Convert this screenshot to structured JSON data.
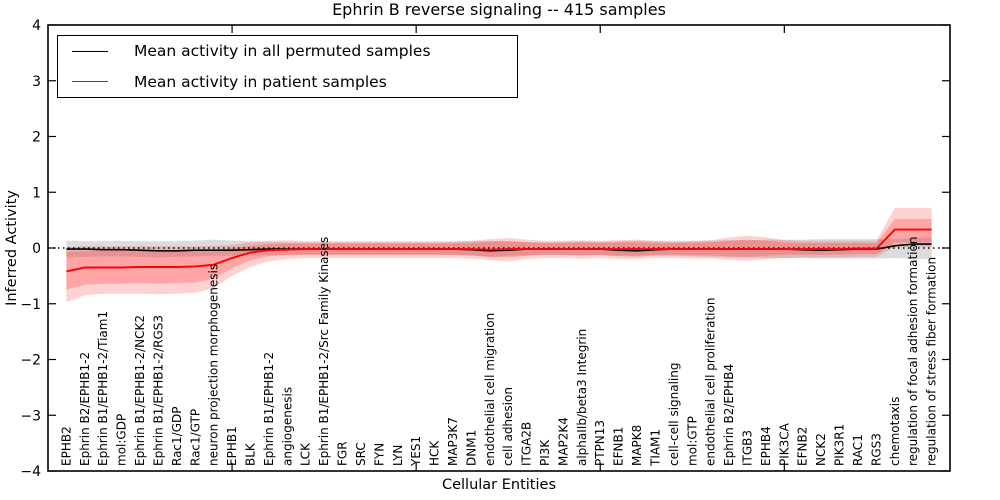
{
  "chart_data": {
    "type": "line",
    "title": "Ephrin B reverse signaling -- 415 samples",
    "xlabel": "Cellular Entities",
    "ylabel": "Inferred Activity",
    "ylim": [
      -4,
      4
    ],
    "yticks": [
      4,
      3,
      2,
      1,
      0,
      -1,
      -2,
      -3,
      -4
    ],
    "xticks": [
      10,
      20,
      30,
      40
    ],
    "grid": false,
    "legend_position": "upper left",
    "legend": [
      {
        "label": "Mean activity in all permuted samples",
        "color": "#000000"
      },
      {
        "label": "Mean activity in patient samples",
        "color": "#ff0000"
      }
    ],
    "zero_line": {
      "style": "dotted",
      "color": "#000000",
      "y": 0
    },
    "categories": [
      "EPHB2",
      "Ephrin B2/EPHB1-2",
      "Ephrin B1/EPHB1-2/Tiam1",
      "mol:GDP",
      "Ephrin B1/EPHB1-2/NCK2",
      "Ephrin B1/EPHB1-2/RGS3",
      "Rac1/GDP",
      "Rac1/GTP",
      "neuron projection morphogenesis",
      "EPHB1",
      "BLK",
      "Ephrin B1/EPHB1-2",
      "angiogenesis",
      "LCK",
      "Ephrin B1/EPHB1-2/Src Family Kinases",
      "FGR",
      "SRC",
      "FYN",
      "LYN",
      "YES1",
      "HCK",
      "MAP3K7",
      "DNM1",
      "endothelial cell migration",
      "cell adhesion",
      "ITGA2B",
      "PI3K",
      "MAP2K4",
      "alphaIIb/beta3 Integrin",
      "PTPN13",
      "EFNB1",
      "MAPK8",
      "TIAM1",
      "cell-cell signaling",
      "mol:GTP",
      "endothelial cell proliferation",
      "Ephrin B2/EPHB4",
      "ITGB3",
      "EPHB4",
      "PIK3CA",
      "EFNB2",
      "NCK2",
      "PIK3R1",
      "RAC1",
      "RGS3",
      "chemotaxis",
      "regulation of focal adhesion formation",
      "regulation of stress fiber formation"
    ],
    "series": [
      {
        "name": "Mean activity in all permuted samples",
        "color": "#000000",
        "values": [
          -0.02,
          -0.02,
          -0.03,
          -0.03,
          -0.04,
          -0.05,
          -0.05,
          -0.04,
          -0.04,
          -0.04,
          -0.03,
          -0.02,
          -0.02,
          -0.02,
          -0.02,
          -0.02,
          -0.02,
          -0.02,
          -0.02,
          -0.02,
          -0.02,
          -0.02,
          -0.03,
          -0.05,
          -0.04,
          -0.02,
          -0.02,
          -0.02,
          -0.02,
          -0.02,
          -0.04,
          -0.05,
          -0.03,
          -0.02,
          -0.02,
          -0.02,
          -0.02,
          -0.02,
          -0.02,
          -0.02,
          -0.03,
          -0.04,
          -0.03,
          -0.02,
          -0.02,
          0.04,
          0.07,
          0.07
        ]
      },
      {
        "name": "Mean activity in patient samples",
        "color": "#ff0000",
        "values": [
          -0.42,
          -0.35,
          -0.35,
          -0.35,
          -0.34,
          -0.34,
          -0.34,
          -0.33,
          -0.3,
          -0.18,
          -0.08,
          -0.04,
          -0.03,
          -0.02,
          -0.02,
          -0.02,
          -0.02,
          -0.02,
          -0.02,
          -0.02,
          -0.02,
          -0.02,
          -0.02,
          -0.03,
          -0.02,
          -0.02,
          -0.02,
          -0.02,
          -0.02,
          -0.02,
          -0.02,
          -0.02,
          -0.02,
          -0.02,
          -0.02,
          -0.02,
          -0.02,
          -0.02,
          -0.02,
          -0.02,
          -0.02,
          -0.02,
          -0.02,
          -0.01,
          -0.01,
          0.33,
          0.33,
          0.33
        ]
      }
    ],
    "bands": [
      {
        "name": "permuted-range",
        "color": "rgba(128,128,128,0.28)",
        "upper": [
          0.13,
          0.12,
          0.12,
          0.13,
          0.12,
          0.12,
          0.12,
          0.13,
          0.15,
          0.13,
          0.12,
          0.11,
          0.1,
          0.1,
          0.1,
          0.1,
          0.1,
          0.1,
          0.1,
          0.1,
          0.1,
          0.11,
          0.12,
          0.13,
          0.12,
          0.11,
          0.1,
          0.11,
          0.12,
          0.11,
          0.12,
          0.13,
          0.12,
          0.11,
          0.12,
          0.13,
          0.14,
          0.14,
          0.15,
          0.15,
          0.15,
          0.16,
          0.16,
          0.16,
          0.16,
          0.16,
          0.18,
          0.19
        ],
        "lower": [
          -0.17,
          -0.16,
          -0.15,
          -0.15,
          -0.16,
          -0.17,
          -0.16,
          -0.15,
          -0.14,
          -0.14,
          -0.14,
          -0.13,
          -0.12,
          -0.12,
          -0.12,
          -0.12,
          -0.12,
          -0.12,
          -0.12,
          -0.12,
          -0.12,
          -0.13,
          -0.14,
          -0.16,
          -0.14,
          -0.13,
          -0.12,
          -0.13,
          -0.14,
          -0.13,
          -0.15,
          -0.16,
          -0.14,
          -0.14,
          -0.15,
          -0.16,
          -0.17,
          -0.17,
          -0.18,
          -0.18,
          -0.18,
          -0.19,
          -0.19,
          -0.19,
          -0.19,
          -0.18,
          -0.19,
          -0.2
        ]
      },
      {
        "name": "patient-range-outer",
        "color": "rgba(255,30,30,0.20)",
        "upper": [
          0.02,
          0.03,
          0.03,
          0.03,
          0.03,
          0.03,
          0.03,
          0.03,
          0.04,
          0.06,
          0.1,
          0.13,
          0.14,
          0.12,
          0.12,
          0.12,
          0.12,
          0.12,
          0.12,
          0.12,
          0.12,
          0.12,
          0.13,
          0.16,
          0.18,
          0.15,
          0.13,
          0.13,
          0.14,
          0.13,
          0.14,
          0.15,
          0.13,
          0.13,
          0.13,
          0.14,
          0.19,
          0.22,
          0.19,
          0.14,
          0.13,
          0.13,
          0.13,
          0.13,
          0.13,
          0.72,
          0.72,
          0.72
        ],
        "lower": [
          -0.97,
          -0.85,
          -0.82,
          -0.82,
          -0.82,
          -0.83,
          -0.82,
          -0.8,
          -0.72,
          -0.5,
          -0.34,
          -0.24,
          -0.2,
          -0.18,
          -0.18,
          -0.18,
          -0.18,
          -0.18,
          -0.18,
          -0.18,
          -0.18,
          -0.18,
          -0.19,
          -0.22,
          -0.24,
          -0.2,
          -0.18,
          -0.18,
          -0.19,
          -0.18,
          -0.2,
          -0.2,
          -0.18,
          -0.18,
          -0.19,
          -0.19,
          -0.21,
          -0.23,
          -0.2,
          -0.18,
          -0.17,
          -0.17,
          -0.17,
          -0.16,
          -0.16,
          0.02,
          0.02,
          0.02
        ]
      },
      {
        "name": "patient-range-inner",
        "color": "rgba(255,30,30,0.25)",
        "upper": [
          -0.07,
          -0.06,
          -0.05,
          -0.05,
          -0.05,
          -0.05,
          -0.05,
          -0.05,
          -0.04,
          0.0,
          0.04,
          0.07,
          0.08,
          0.08,
          0.08,
          0.08,
          0.08,
          0.08,
          0.08,
          0.08,
          0.08,
          0.08,
          0.09,
          0.11,
          0.12,
          0.1,
          0.09,
          0.09,
          0.1,
          0.09,
          0.1,
          0.1,
          0.09,
          0.09,
          0.09,
          0.1,
          0.13,
          0.15,
          0.13,
          0.1,
          0.09,
          0.09,
          0.09,
          0.09,
          0.09,
          0.52,
          0.52,
          0.52
        ],
        "lower": [
          -0.75,
          -0.66,
          -0.64,
          -0.64,
          -0.63,
          -0.64,
          -0.63,
          -0.62,
          -0.55,
          -0.36,
          -0.22,
          -0.15,
          -0.13,
          -0.12,
          -0.12,
          -0.12,
          -0.12,
          -0.12,
          -0.12,
          -0.12,
          -0.12,
          -0.12,
          -0.13,
          -0.16,
          -0.17,
          -0.14,
          -0.12,
          -0.12,
          -0.13,
          -0.12,
          -0.14,
          -0.14,
          -0.12,
          -0.12,
          -0.13,
          -0.13,
          -0.15,
          -0.16,
          -0.14,
          -0.12,
          -0.12,
          -0.12,
          -0.12,
          -0.11,
          -0.11,
          0.1,
          0.1,
          0.1
        ]
      }
    ]
  }
}
